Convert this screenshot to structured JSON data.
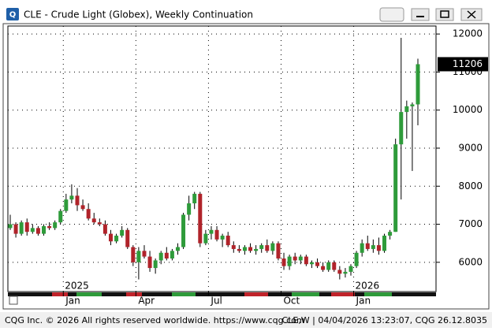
{
  "window": {
    "title": "CLE - Crude Light (Globex), Weekly Continuation",
    "footer_left": "CQG Inc. © 2026 All rights reserved worldwide. https://www.cqg.com",
    "footer_right": "CLE,W | 04/04/2026 13:23:07, CQG 26.12.8035"
  },
  "chart_data": {
    "type": "candlestick",
    "categories": [
      null,
      null,
      null,
      null,
      null,
      null,
      null,
      null,
      null,
      null,
      "Jan",
      null,
      null,
      null,
      null,
      null,
      null,
      null,
      null,
      null,
      null,
      null,
      null,
      "Apr",
      null,
      null,
      null,
      null,
      null,
      null,
      null,
      null,
      null,
      null,
      null,
      null,
      "Jul",
      null,
      null,
      null,
      null,
      null,
      null,
      null,
      null,
      null,
      null,
      null,
      null,
      "Oct",
      null,
      null,
      null,
      null,
      null,
      null,
      null,
      null,
      null,
      null,
      null,
      null,
      "Jan",
      null,
      null,
      null,
      null,
      null,
      null,
      null,
      null,
      null,
      null,
      null
    ],
    "year_labels": [
      null,
      null,
      null,
      null,
      null,
      null,
      null,
      null,
      null,
      null,
      "2025",
      null,
      null,
      null,
      null,
      null,
      null,
      null,
      null,
      null,
      null,
      null,
      null,
      null,
      null,
      null,
      null,
      null,
      null,
      null,
      null,
      null,
      null,
      null,
      null,
      null,
      null,
      null,
      null,
      null,
      null,
      null,
      null,
      null,
      null,
      null,
      null,
      null,
      null,
      null,
      null,
      null,
      null,
      null,
      null,
      null,
      null,
      null,
      null,
      null,
      null,
      null,
      "2026",
      null,
      null,
      null,
      null,
      null,
      null,
      null,
      null,
      null,
      null,
      null
    ],
    "open": [
      6900,
      7000,
      6750,
      7050,
      6800,
      6900,
      6750,
      6950,
      6900,
      7050,
      7350,
      7650,
      7750,
      7500,
      7400,
      7150,
      7050,
      7000,
      6750,
      6550,
      6700,
      6850,
      6400,
      6000,
      6300,
      6150,
      5850,
      6050,
      6250,
      6100,
      6300,
      6400,
      7250,
      7550,
      7800,
      6500,
      6750,
      6850,
      6600,
      6700,
      6450,
      6350,
      6300,
      6400,
      6300,
      6350,
      6450,
      6300,
      6500,
      6100,
      5900,
      6150,
      6050,
      6150,
      5950,
      6000,
      5900,
      5800,
      6000,
      5800,
      5700,
      5750,
      5900,
      6250,
      6500,
      6350,
      6450,
      6300,
      6700,
      6800,
      9100,
      9950,
      10100,
      10150
    ],
    "high": [
      7250,
      7050,
      7100,
      7150,
      7000,
      6950,
      7000,
      7050,
      7100,
      7400,
      7800,
      8050,
      7950,
      7650,
      7550,
      7300,
      7150,
      7100,
      6850,
      6750,
      6950,
      6900,
      6450,
      6400,
      6450,
      6300,
      6100,
      6300,
      6400,
      6350,
      6500,
      7300,
      7750,
      7850,
      7850,
      6850,
      6950,
      6950,
      6750,
      6800,
      6550,
      6450,
      6450,
      6500,
      6450,
      6500,
      6600,
      6550,
      6550,
      6250,
      6200,
      6250,
      6200,
      6200,
      6050,
      6100,
      6000,
      6050,
      6050,
      5900,
      5850,
      5950,
      6300,
      6600,
      6700,
      6600,
      6650,
      6750,
      6850,
      9250,
      11900,
      10250,
      10200,
      11350
    ],
    "low": [
      6850,
      6650,
      6700,
      6700,
      6750,
      6700,
      6700,
      6850,
      6850,
      7000,
      7300,
      7550,
      7350,
      7350,
      7100,
      7000,
      6950,
      6700,
      6450,
      6500,
      6650,
      6350,
      5900,
      5550,
      6100,
      5750,
      5700,
      5950,
      6050,
      6050,
      6200,
      6350,
      7100,
      7400,
      6400,
      6450,
      6600,
      6550,
      6400,
      6400,
      6250,
      6250,
      6200,
      6250,
      6200,
      6250,
      6250,
      6200,
      6050,
      5800,
      5800,
      5950,
      5950,
      5900,
      5850,
      5850,
      5750,
      5750,
      5750,
      5550,
      5600,
      5650,
      5850,
      6150,
      6300,
      6250,
      6200,
      6250,
      6600,
      6800,
      7650,
      9250,
      8400,
      9600
    ],
    "close": [
      7000,
      6750,
      7050,
      6800,
      6900,
      6750,
      6950,
      6900,
      7050,
      7350,
      7650,
      7750,
      7500,
      7400,
      7150,
      7050,
      7000,
      6750,
      6550,
      6700,
      6850,
      6400,
      6000,
      6300,
      6150,
      5850,
      6050,
      6250,
      6100,
      6300,
      6400,
      7250,
      7550,
      7800,
      6500,
      6750,
      6850,
      6600,
      6700,
      6450,
      6350,
      6300,
      6400,
      6300,
      6350,
      6450,
      6300,
      6500,
      6100,
      5900,
      6150,
      6050,
      6150,
      5950,
      6000,
      5900,
      5800,
      6000,
      5800,
      5700,
      5750,
      5900,
      6250,
      6500,
      6350,
      6450,
      6300,
      6700,
      6800,
      9100,
      9950,
      10100,
      10150,
      11206
    ],
    "up_color": "#2e9b3a",
    "down_color": "#b0232a",
    "ylim": [
      5230,
      12210
    ],
    "yticks": [
      6000,
      7000,
      8000,
      9000,
      10000,
      11000,
      12000
    ],
    "last_price": 11206,
    "grid": true
  }
}
